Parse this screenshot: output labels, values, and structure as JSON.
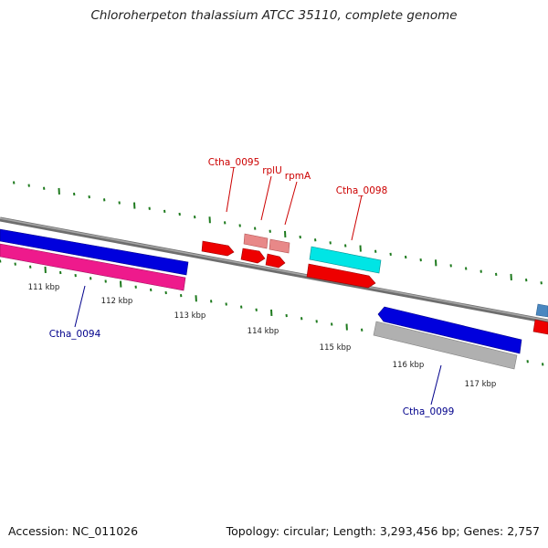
{
  "header": {
    "title": "Chloroherpeton thalassium ATCC 35110, complete genome"
  },
  "footer": {
    "accession": "Accession: NC_011026",
    "summary": "Topology: circular; Length: 3,293,456 bp; Genes: 2,757"
  },
  "colors": {
    "backbone": "#808080",
    "ticks": "#1e7a1e",
    "label_top": "#cc0000",
    "label_bottom": "#00008b",
    "gene_red": "#ee0000",
    "gene_salmon": "#e88888",
    "gene_cyan": "#00e5e5",
    "gene_blue": "#0000dd",
    "gene_magenta": "#ee1a8c",
    "gene_gray": "#b0b0b0",
    "gene_steelblue": "#4a87c0"
  },
  "map": {
    "kbp_labels": [
      "111 kbp",
      "112 kbp",
      "113 kbp",
      "114 kbp",
      "115 kbp",
      "116 kbp",
      "117 kbp"
    ],
    "gene_labels_top": [
      "Ctha_0095",
      "rplU",
      "rpmA",
      "Ctha_0098"
    ],
    "gene_labels_bottom": [
      "Ctha_0094",
      "Ctha_0099"
    ]
  }
}
